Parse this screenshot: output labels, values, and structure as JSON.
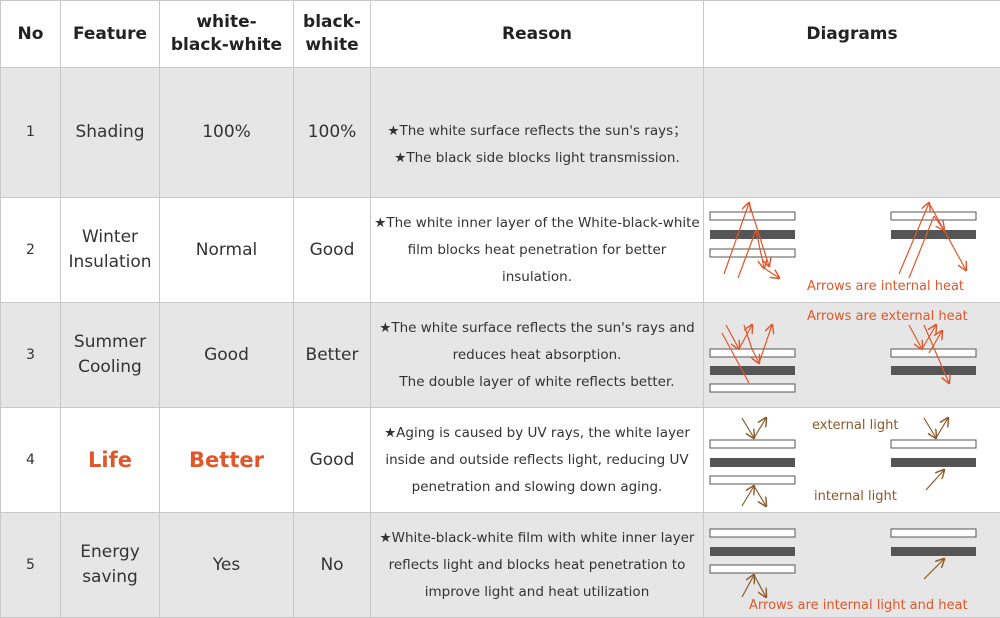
{
  "header": {
    "no": "No",
    "feature": "Feature",
    "wbw": "white-\nblack-white",
    "bw": "black-\nwhite",
    "reason": "Reason",
    "diagrams": "Diagrams"
  },
  "rows": [
    {
      "no": "1",
      "feature": "Shading",
      "wbw": "100%",
      "bw": "100%",
      "reason": [
        "★The white surface reflects the sun's rays；",
        "★The black side blocks light transmission."
      ]
    },
    {
      "no": "2",
      "feature": "Winter\nInsulation",
      "wbw": "Normal",
      "bw": "Good",
      "reason": [
        "★The white inner layer of the White-black-white",
        "film blocks heat penetration for better",
        "insulation."
      ],
      "diagram_label": "Arrows are internal heat"
    },
    {
      "no": "3",
      "feature": "Summer\nCooling",
      "wbw": "Good",
      "bw": "Better",
      "reason": [
        "★The white surface reflects the sun's rays and",
        "reduces heat absorption.",
        "The double layer of white reflects better."
      ],
      "diagram_label": "Arrows are external heat"
    },
    {
      "no": "4",
      "feature": "Life",
      "wbw": "Better",
      "bw": "Good",
      "reason": [
        "★Aging is caused by UV rays, the white layer",
        "inside and outside reflects light, reducing UV",
        "penetration and slowing down aging."
      ],
      "diagram_label_top": "external light",
      "diagram_label_bottom": "internal light"
    },
    {
      "no": "5",
      "feature": "Energy\nsaving",
      "wbw": "Yes",
      "bw": "No",
      "reason": [
        "★White-black-white film with white inner layer",
        "reflects light and blocks heat penetration to",
        "improve light and heat utilization"
      ],
      "diagram_label": "Arrows are internal light and heat"
    }
  ],
  "colors": {
    "highlight": "#e0572a",
    "heat_arrow": "#e0572a",
    "light_arrow": "#8a5a2b",
    "black_layer": "#555555",
    "row_gray": "#e6e6e6"
  }
}
